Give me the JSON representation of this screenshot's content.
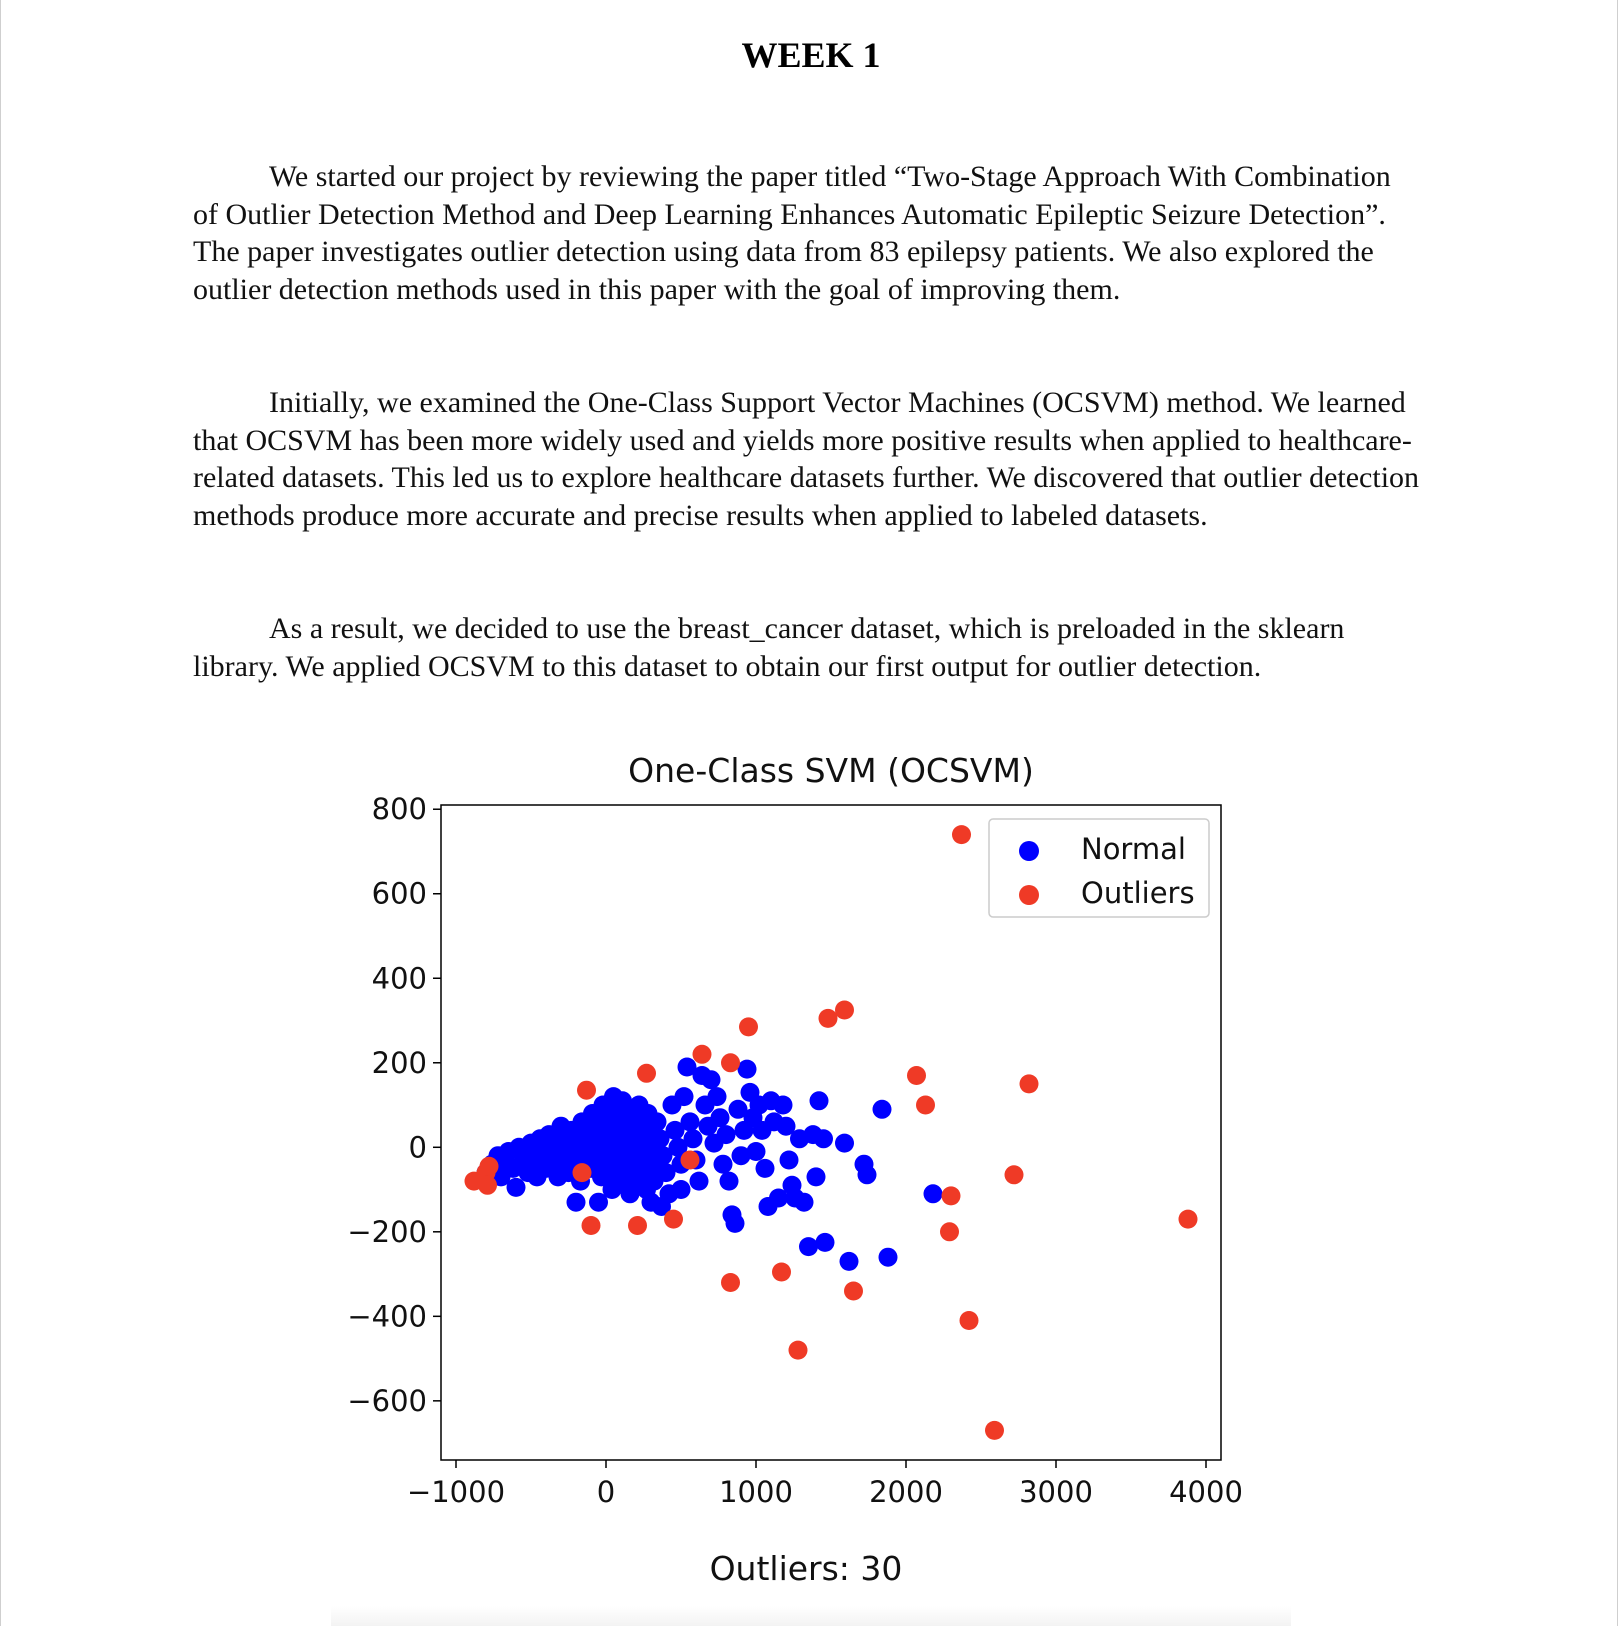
{
  "document": {
    "heading": "WEEK 1",
    "paragraphs": [
      "We started our project by reviewing the paper titled “Two-Stage Approach With Combination of Outlier Detection Method and Deep Learning Enhances Automatic Epileptic Seizure Detection”. The paper investigates outlier detection using data from 83 epilepsy patients. We also explored the outlier detection methods used in this paper with the goal of improving them.",
      "Initially, we examined the One-Class Support Vector Machines (OCSVM) method. We learned that OCSVM has been more widely used and yields more positive results when applied to healthcare-related datasets. This led us to explore healthcare datasets further. We discovered that outlier detection methods produce more accurate and precise results when applied to labeled datasets.",
      "As a result, we decided to use the breast_cancer dataset, which is preloaded in the sklearn library. We applied OCSVM to this dataset to obtain our first output for outlier detection."
    ]
  },
  "chart_data": {
    "type": "scatter",
    "title": "One-Class SVM (OCSVM)",
    "xlabel": "Outliers: 30",
    "ylabel": "",
    "xlim": [
      -1100,
      4100
    ],
    "ylim": [
      -740,
      810
    ],
    "x_ticks": [
      -1000,
      0,
      1000,
      2000,
      3000,
      4000
    ],
    "x_tick_labels": [
      "−1000",
      "0",
      "1000",
      "2000",
      "3000",
      "4000"
    ],
    "y_ticks": [
      800,
      600,
      400,
      200,
      0,
      -200,
      -400,
      -600
    ],
    "y_tick_labels": [
      "800",
      "600",
      "400",
      "200",
      "0",
      "−200",
      "−400",
      "−600"
    ],
    "grid": false,
    "legend_position": "top-right",
    "series": [
      {
        "name": "Normal",
        "color": "#0000ff",
        "points": [
          [
            -800,
            -60
          ],
          [
            -760,
            -40
          ],
          [
            -720,
            -20
          ],
          [
            -700,
            -70
          ],
          [
            -680,
            -30
          ],
          [
            -650,
            -10
          ],
          [
            -620,
            -50
          ],
          [
            -600,
            -95
          ],
          [
            -580,
            0
          ],
          [
            -560,
            -40
          ],
          [
            -540,
            -20
          ],
          [
            -520,
            -60
          ],
          [
            -500,
            10
          ],
          [
            -480,
            -30
          ],
          [
            -460,
            -70
          ],
          [
            -440,
            20
          ],
          [
            -420,
            -10
          ],
          [
            -400,
            -50
          ],
          [
            -380,
            30
          ],
          [
            -360,
            0
          ],
          [
            -340,
            -40
          ],
          [
            -320,
            -70
          ],
          [
            -300,
            50
          ],
          [
            -290,
            10
          ],
          [
            -270,
            -20
          ],
          [
            -250,
            -60
          ],
          [
            -230,
            40
          ],
          [
            -210,
            0
          ],
          [
            -190,
            -30
          ],
          [
            -170,
            -80
          ],
          [
            -160,
            60
          ],
          [
            -140,
            20
          ],
          [
            -120,
            -10
          ],
          [
            -100,
            -50
          ],
          [
            -90,
            80
          ],
          [
            -70,
            40
          ],
          [
            -60,
            0
          ],
          [
            -40,
            -30
          ],
          [
            -30,
            -70
          ],
          [
            -20,
            100
          ],
          [
            0,
            60
          ],
          [
            10,
            20
          ],
          [
            20,
            -20
          ],
          [
            30,
            -60
          ],
          [
            40,
            -100
          ],
          [
            50,
            120
          ],
          [
            60,
            80
          ],
          [
            70,
            40
          ],
          [
            80,
            0
          ],
          [
            90,
            -40
          ],
          [
            100,
            -80
          ],
          [
            110,
            110
          ],
          [
            120,
            70
          ],
          [
            130,
            30
          ],
          [
            140,
            -10
          ],
          [
            150,
            -50
          ],
          [
            160,
            -90
          ],
          [
            170,
            90
          ],
          [
            180,
            50
          ],
          [
            190,
            10
          ],
          [
            200,
            -30
          ],
          [
            210,
            -70
          ],
          [
            220,
            100
          ],
          [
            230,
            60
          ],
          [
            240,
            20
          ],
          [
            250,
            -20
          ],
          [
            260,
            -60
          ],
          [
            270,
            -100
          ],
          [
            280,
            80
          ],
          [
            290,
            40
          ],
          [
            300,
            0
          ],
          [
            310,
            -40
          ],
          [
            320,
            -80
          ],
          [
            340,
            60
          ],
          [
            360,
            20
          ],
          [
            380,
            -20
          ],
          [
            400,
            -60
          ],
          [
            420,
            -110
          ],
          [
            440,
            100
          ],
          [
            460,
            40
          ],
          [
            480,
            0
          ],
          [
            500,
            -40
          ],
          [
            520,
            120
          ],
          [
            540,
            190
          ],
          [
            560,
            60
          ],
          [
            580,
            20
          ],
          [
            600,
            -30
          ],
          [
            620,
            -80
          ],
          [
            640,
            170
          ],
          [
            660,
            100
          ],
          [
            680,
            50
          ],
          [
            700,
            160
          ],
          [
            720,
            10
          ],
          [
            740,
            120
          ],
          [
            760,
            70
          ],
          [
            780,
            -40
          ],
          [
            800,
            30
          ],
          [
            820,
            -80
          ],
          [
            840,
            -160
          ],
          [
            860,
            -180
          ],
          [
            880,
            90
          ],
          [
            900,
            -20
          ],
          [
            920,
            40
          ],
          [
            940,
            185
          ],
          [
            960,
            130
          ],
          [
            980,
            70
          ],
          [
            1000,
            -10
          ],
          [
            1020,
            100
          ],
          [
            1040,
            40
          ],
          [
            1060,
            -50
          ],
          [
            1080,
            -140
          ],
          [
            1100,
            110
          ],
          [
            1120,
            60
          ],
          [
            1150,
            -120
          ],
          [
            1180,
            100
          ],
          [
            1200,
            50
          ],
          [
            1220,
            -30
          ],
          [
            1240,
            -90
          ],
          [
            1260,
            -120
          ],
          [
            1290,
            20
          ],
          [
            1320,
            -130
          ],
          [
            1350,
            -235
          ],
          [
            1380,
            30
          ],
          [
            1400,
            -70
          ],
          [
            1420,
            110
          ],
          [
            1450,
            20
          ],
          [
            1460,
            -225
          ],
          [
            1590,
            10
          ],
          [
            1620,
            -270
          ],
          [
            1720,
            -40
          ],
          [
            1740,
            -65
          ],
          [
            1840,
            90
          ],
          [
            1880,
            -260
          ],
          [
            2180,
            -110
          ],
          [
            -200,
            -130
          ],
          [
            -50,
            -130
          ],
          [
            300,
            -130
          ],
          [
            160,
            -110
          ],
          [
            500,
            -100
          ],
          [
            370,
            -140
          ]
        ]
      },
      {
        "name": "Outliers",
        "color": "#ef3a26",
        "points": [
          [
            -880,
            -80
          ],
          [
            -800,
            -60
          ],
          [
            -790,
            -90
          ],
          [
            -780,
            -45
          ],
          [
            -130,
            135
          ],
          [
            -100,
            -185
          ],
          [
            210,
            -185
          ],
          [
            270,
            175
          ],
          [
            450,
            -170
          ],
          [
            640,
            220
          ],
          [
            830,
            200
          ],
          [
            950,
            285
          ],
          [
            830,
            -320
          ],
          [
            1170,
            -295
          ],
          [
            1280,
            -480
          ],
          [
            1480,
            305
          ],
          [
            1590,
            325
          ],
          [
            1650,
            -340
          ],
          [
            2070,
            170
          ],
          [
            2130,
            100
          ],
          [
            2300,
            -115
          ],
          [
            2290,
            -200
          ],
          [
            2370,
            740
          ],
          [
            2420,
            -410
          ],
          [
            2590,
            -670
          ],
          [
            2720,
            -65
          ],
          [
            2820,
            150
          ],
          [
            3880,
            -170
          ],
          [
            -160,
            -60
          ],
          [
            560,
            -30
          ]
        ]
      }
    ]
  }
}
